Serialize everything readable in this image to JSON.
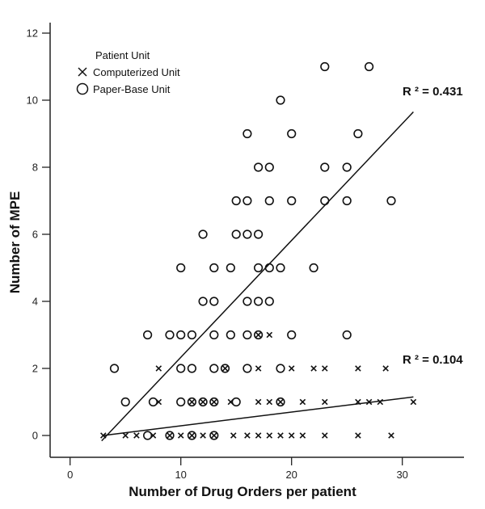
{
  "chart_data": {
    "type": "scatter",
    "xlabel": "Number of Drug Orders per patient",
    "ylabel": "Number of MPE",
    "xlim": [
      -1.8,
      35.5
    ],
    "ylim": [
      -0.65,
      12.3
    ],
    "xticks": [
      "0",
      "10",
      "20",
      "30"
    ],
    "yticks": [
      "0",
      "2",
      "4",
      "6",
      "8",
      "10",
      "12"
    ],
    "grid": false,
    "legend": {
      "title": "Patient Unit",
      "placement": "top-left",
      "entries": [
        {
          "label": "Computerized Unit",
          "marker": "x"
        },
        {
          "label": "Paper-Base Unit",
          "marker": "circle"
        }
      ]
    },
    "series": [
      {
        "name": "Computerized Unit",
        "marker": "x",
        "points": [
          [
            3,
            0
          ],
          [
            5,
            0
          ],
          [
            6,
            0
          ],
          [
            7.5,
            0
          ],
          [
            9,
            0
          ],
          [
            10,
            0
          ],
          [
            11,
            0
          ],
          [
            12,
            0
          ],
          [
            13,
            0
          ],
          [
            14.75,
            0
          ],
          [
            16,
            0
          ],
          [
            17,
            0
          ],
          [
            18,
            0
          ],
          [
            19,
            0
          ],
          [
            20,
            0
          ],
          [
            21,
            0
          ],
          [
            23,
            0
          ],
          [
            26,
            0
          ],
          [
            29,
            0
          ],
          [
            8,
            1
          ],
          [
            11,
            1
          ],
          [
            12,
            1
          ],
          [
            13,
            1
          ],
          [
            14.5,
            1
          ],
          [
            17,
            1
          ],
          [
            18,
            1
          ],
          [
            19,
            1
          ],
          [
            21,
            1
          ],
          [
            23,
            1
          ],
          [
            26,
            1
          ],
          [
            27,
            1
          ],
          [
            28,
            1
          ],
          [
            31,
            1
          ],
          [
            8,
            2
          ],
          [
            14,
            2
          ],
          [
            17,
            2
          ],
          [
            20,
            2
          ],
          [
            22,
            2
          ],
          [
            23,
            2
          ],
          [
            26,
            2
          ],
          [
            28.5,
            2
          ],
          [
            17,
            3
          ],
          [
            18,
            3
          ]
        ],
        "fit": {
          "x": [
            3,
            31
          ],
          "y": [
            0.0,
            1.15
          ],
          "label": "R ² = 0.104"
        }
      },
      {
        "name": "Paper-Base Unit",
        "marker": "circle",
        "points": [
          [
            7,
            0
          ],
          [
            9,
            0
          ],
          [
            11,
            0
          ],
          [
            13,
            0
          ],
          [
            5,
            1
          ],
          [
            7.5,
            1
          ],
          [
            10,
            1
          ],
          [
            11,
            1
          ],
          [
            12,
            1
          ],
          [
            13,
            1
          ],
          [
            15,
            1
          ],
          [
            19,
            1
          ],
          [
            4,
            2
          ],
          [
            10,
            2
          ],
          [
            11,
            2
          ],
          [
            13,
            2
          ],
          [
            14,
            2
          ],
          [
            16,
            2
          ],
          [
            19,
            2
          ],
          [
            7,
            3
          ],
          [
            9,
            3
          ],
          [
            10,
            3
          ],
          [
            11,
            3
          ],
          [
            13,
            3
          ],
          [
            14.5,
            3
          ],
          [
            16,
            3
          ],
          [
            17,
            3
          ],
          [
            20,
            3
          ],
          [
            25,
            3
          ],
          [
            12,
            4
          ],
          [
            13,
            4
          ],
          [
            16,
            4
          ],
          [
            17,
            4
          ],
          [
            18,
            4
          ],
          [
            10,
            5
          ],
          [
            13,
            5
          ],
          [
            14.5,
            5
          ],
          [
            17,
            5
          ],
          [
            18,
            5
          ],
          [
            19,
            5
          ],
          [
            22,
            5
          ],
          [
            12,
            6
          ],
          [
            15,
            6
          ],
          [
            16,
            6
          ],
          [
            17,
            6
          ],
          [
            15,
            7
          ],
          [
            16,
            7
          ],
          [
            18,
            7
          ],
          [
            20,
            7
          ],
          [
            23,
            7
          ],
          [
            25,
            7
          ],
          [
            29,
            7
          ],
          [
            17,
            8
          ],
          [
            18,
            8
          ],
          [
            23,
            8
          ],
          [
            25,
            8
          ],
          [
            16,
            9
          ],
          [
            20,
            9
          ],
          [
            26,
            9
          ],
          [
            19,
            10
          ],
          [
            23,
            11
          ],
          [
            27,
            11
          ]
        ],
        "fit": {
          "x": [
            2.85,
            31
          ],
          "y": [
            -0.16,
            9.65
          ],
          "label": "R ² = 0.431"
        }
      }
    ]
  }
}
